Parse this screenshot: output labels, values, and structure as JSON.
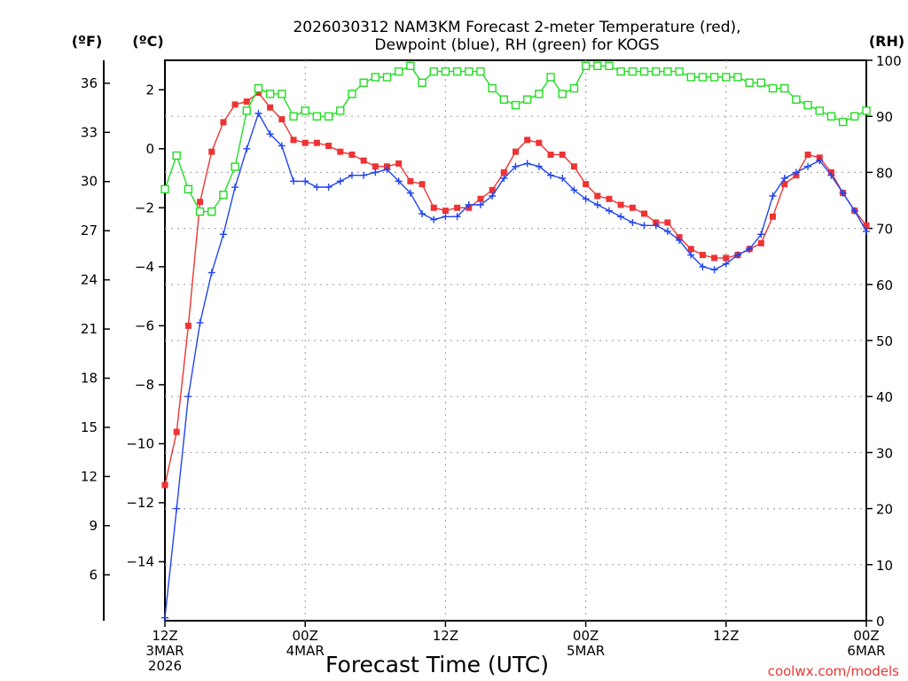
{
  "chart_data": {
    "type": "line",
    "title_line1": "2026030312 NAM3KM Forecast 2-meter Temperature (red),",
    "title_line2": "Dewpoint (blue), RH (green) for KOGS",
    "xlabel": "Forecast Time (UTC)",
    "credit": "coolwx.com/models",
    "x_ticks": [
      {
        "hour": 0,
        "lines": [
          "12Z",
          "3MAR",
          "2026"
        ]
      },
      {
        "hour": 12,
        "lines": [
          "00Z",
          "4MAR"
        ]
      },
      {
        "hour": 24,
        "lines": [
          "12Z"
        ]
      },
      {
        "hour": 36,
        "lines": [
          "00Z",
          "5MAR"
        ]
      },
      {
        "hour": 48,
        "lines": [
          "12Z"
        ]
      },
      {
        "hour": 60,
        "lines": [
          "00Z",
          "6MAR"
        ]
      }
    ],
    "x_range_hours": [
      0,
      60
    ],
    "y_left_f": {
      "unit_label": "(ºF)",
      "ticks": [
        6,
        9,
        12,
        15,
        18,
        21,
        24,
        27,
        30,
        33,
        36
      ]
    },
    "y_left_c": {
      "unit_label": "(ºC)",
      "ticks": [
        -14,
        -12,
        -10,
        -8,
        -6,
        -4,
        -2,
        0,
        2
      ],
      "range": [
        -16,
        3
      ]
    },
    "y_right_rh": {
      "unit_label": "(RH)",
      "ticks": [
        0,
        10,
        20,
        30,
        40,
        50,
        60,
        70,
        80,
        90,
        100
      ],
      "range": [
        0,
        100
      ]
    },
    "series": [
      {
        "name": "Temperature (ºC)",
        "color": "#ee3333",
        "marker": "filled-square",
        "axis": "c",
        "values": [
          -11.4,
          -9.6,
          -6.0,
          -1.8,
          -0.1,
          0.9,
          1.5,
          1.6,
          1.9,
          1.4,
          1.0,
          0.3,
          0.2,
          0.2,
          0.1,
          -0.1,
          -0.2,
          -0.4,
          -0.6,
          -0.6,
          -0.5,
          -1.1,
          -1.2,
          -2.0,
          -2.1,
          -2.0,
          -2.0,
          -1.7,
          -1.4,
          -0.8,
          -0.1,
          0.3,
          0.2,
          -0.2,
          -0.2,
          -0.6,
          -1.2,
          -1.6,
          -1.7,
          -1.9,
          -2.0,
          -2.2,
          -2.5,
          -2.5,
          -3.0,
          -3.4,
          -3.6,
          -3.7,
          -3.7,
          -3.6,
          -3.4,
          -3.2,
          -2.3,
          -1.2,
          -0.9,
          -0.2,
          -0.3,
          -0.8,
          -1.5,
          -2.1,
          -2.6
        ]
      },
      {
        "name": "Dewpoint (ºC)",
        "color": "#2244ee",
        "marker": "plus",
        "axis": "c",
        "values": [
          -15.9,
          -12.2,
          -8.4,
          -5.9,
          -4.2,
          -2.9,
          -1.3,
          0.0,
          1.2,
          0.5,
          0.1,
          -1.1,
          -1.1,
          -1.3,
          -1.3,
          -1.1,
          -0.9,
          -0.9,
          -0.8,
          -0.7,
          -1.1,
          -1.5,
          -2.2,
          -2.4,
          -2.3,
          -2.3,
          -1.9,
          -1.9,
          -1.6,
          -1.0,
          -0.6,
          -0.5,
          -0.6,
          -0.9,
          -1.0,
          -1.4,
          -1.7,
          -1.9,
          -2.1,
          -2.3,
          -2.5,
          -2.6,
          -2.6,
          -2.8,
          -3.1,
          -3.6,
          -4.0,
          -4.1,
          -3.9,
          -3.6,
          -3.4,
          -2.9,
          -1.6,
          -1.0,
          -0.8,
          -0.6,
          -0.4,
          -0.9,
          -1.5,
          -2.1,
          -2.8
        ]
      },
      {
        "name": "RH (%)",
        "color": "#22dd22",
        "marker": "open-square",
        "axis": "rh",
        "values": [
          77,
          83,
          77,
          73,
          73,
          76,
          81,
          91,
          95,
          94,
          94,
          90,
          91,
          90,
          90,
          91,
          94,
          96,
          97,
          97,
          98,
          99,
          96,
          98,
          98,
          98,
          98,
          98,
          95,
          93,
          92,
          93,
          94,
          97,
          94,
          95,
          99,
          99,
          99,
          98,
          98,
          98,
          98,
          98,
          98,
          97,
          97,
          97,
          97,
          97,
          96,
          96,
          95,
          95,
          93,
          92,
          91,
          90,
          89,
          90,
          91
        ]
      }
    ]
  }
}
